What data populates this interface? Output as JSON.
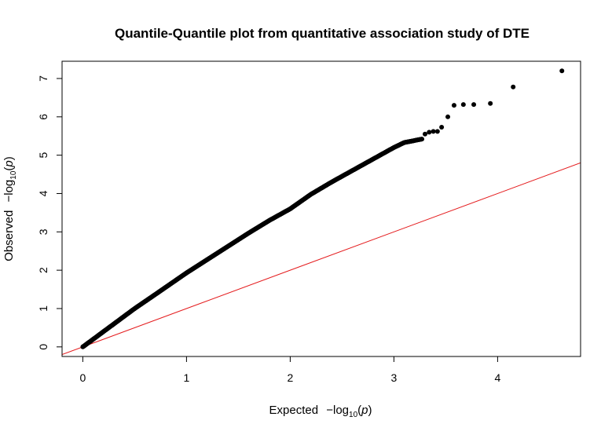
{
  "chart_data": {
    "type": "scatter",
    "title": "Quantile-Quantile plot from quantitative association study of DTE",
    "xlabel": {
      "prefix": "Expected",
      "minus": "−",
      "log": "log",
      "base": "10",
      "open": "(",
      "var": "p",
      "close": ")"
    },
    "ylabel": {
      "prefix": "Observed",
      "minus": "−",
      "log": "log",
      "base": "10",
      "open": "(",
      "var": "p",
      "close": ")"
    },
    "xlim": [
      -0.2,
      4.8
    ],
    "ylim": [
      -0.25,
      7.45
    ],
    "xticks": [
      0,
      1,
      2,
      3,
      4
    ],
    "yticks": [
      0,
      1,
      2,
      3,
      4,
      5,
      6,
      7
    ],
    "grid": false,
    "legend": "none",
    "colors": {
      "points": "#000000",
      "reference_line": "#e41a1c"
    },
    "reference_line": {
      "slope": 1,
      "intercept": 0
    },
    "curve_knots": [
      [
        0,
        0
      ],
      [
        0.1,
        0.2
      ],
      [
        0.3,
        0.6
      ],
      [
        0.5,
        1.0
      ],
      [
        0.7,
        1.37
      ],
      [
        1.0,
        1.93
      ],
      [
        1.3,
        2.45
      ],
      [
        1.6,
        2.97
      ],
      [
        1.8,
        3.3
      ],
      [
        2.0,
        3.6
      ],
      [
        2.2,
        3.98
      ],
      [
        2.4,
        4.3
      ],
      [
        2.6,
        4.6
      ],
      [
        2.8,
        4.9
      ],
      [
        3.0,
        5.2
      ],
      [
        3.1,
        5.33
      ],
      [
        3.27,
        5.42
      ]
    ],
    "tail_points": [
      [
        3.3,
        5.55
      ],
      [
        3.34,
        5.6
      ],
      [
        3.38,
        5.62
      ],
      [
        3.42,
        5.62
      ],
      [
        3.46,
        5.73
      ],
      [
        3.52,
        6.0
      ],
      [
        3.58,
        6.3
      ],
      [
        3.67,
        6.32
      ],
      [
        3.77,
        6.32
      ],
      [
        3.93,
        6.35
      ],
      [
        4.15,
        6.78
      ],
      [
        4.62,
        7.2
      ]
    ]
  }
}
